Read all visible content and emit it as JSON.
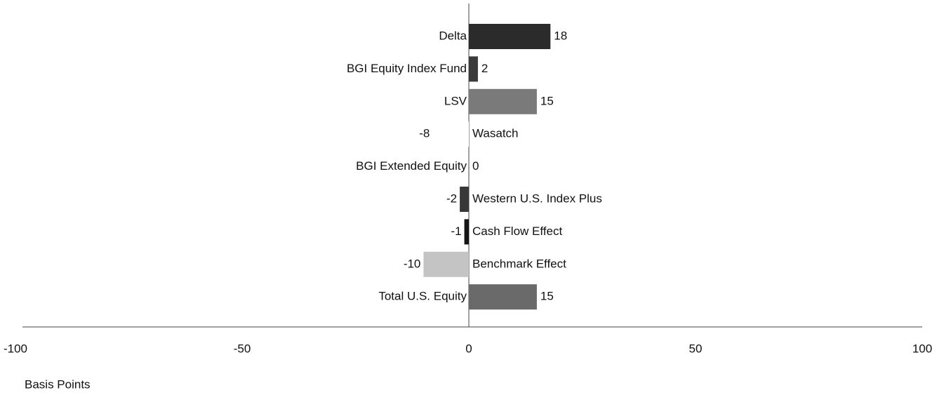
{
  "chart_data": {
    "type": "barh",
    "categories": [
      "Delta",
      "BGI Equity Index Fund",
      "LSV",
      "Wasatch",
      "BGI Extended Equity",
      "Western U.S. Index Plus",
      "Cash Flow Effect",
      "Benchmark Effect",
      "Total U.S. Equity"
    ],
    "values": [
      18,
      2,
      15,
      -8,
      0,
      -2,
      -1,
      -10,
      15
    ],
    "colors": [
      "#2b2b2b",
      "#3a3a3a",
      "#7a7a7a",
      "#ffffff",
      "#444444",
      "#383838",
      "#151515",
      "#c4c4c4",
      "#6a6a6a"
    ],
    "xlim": [
      -100,
      100
    ],
    "xticks": [
      -100,
      -50,
      0,
      50,
      100
    ],
    "xlabel": "Basis Points",
    "grid": false
  }
}
